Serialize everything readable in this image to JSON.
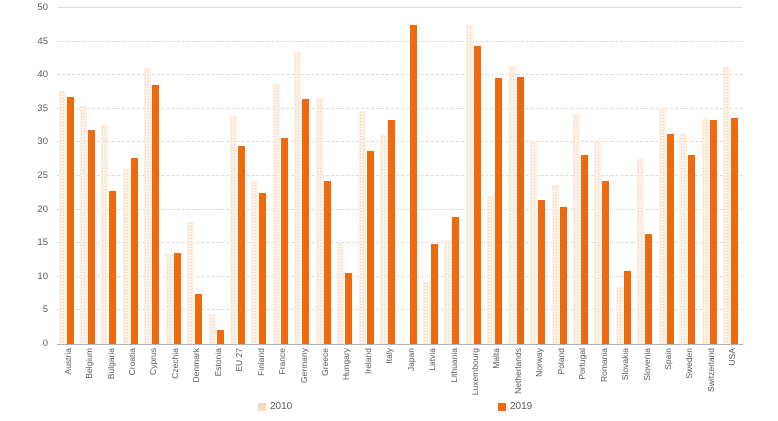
{
  "chart_data": {
    "type": "bar",
    "title": "",
    "xlabel": "",
    "ylabel": "",
    "ylim": [
      0,
      50
    ],
    "yticks": [
      0,
      5,
      10,
      15,
      20,
      25,
      30,
      35,
      40,
      45,
      50
    ],
    "grid": "horizontal-dashed",
    "legend_position": "bottom",
    "categories": [
      "Austria",
      "Belgium",
      "Bulgaria",
      "Croatia",
      "Cyprus",
      "Czechia",
      "Denmark",
      "Estonia",
      "EU 27",
      "Finland",
      "France",
      "Germany",
      "Greece",
      "Hungary",
      "Ireland",
      "Italy",
      "Japan",
      "Latvia",
      "Lithuania",
      "Luxembourg",
      "Malta",
      "Netherlands",
      "Norway",
      "Poland",
      "Portugal",
      "Romania",
      "Slovakia",
      "Slovenia",
      "Spain",
      "Sweden",
      "Switzerland",
      "USA"
    ],
    "series": [
      {
        "name": "2010",
        "color": "#fdf0e5",
        "legend_color": "#f9d9c0",
        "values": [
          37.6,
          35.4,
          32.6,
          26.1,
          41.1,
          13.4,
          18.2,
          4.4,
          34.0,
          24.3,
          38.7,
          43.4,
          36.6,
          15.0,
          34.7,
          31.1,
          null,
          9.3,
          15.5,
          47.5,
          22.0,
          41.4,
          30.0,
          23.7,
          34.2,
          30.0,
          8.5,
          27.5,
          35.2,
          31.2,
          33.5,
          41.3
        ]
      },
      {
        "name": "2019",
        "color": "#f1690d",
        "legend_color": "#f1690d",
        "values": [
          36.7,
          31.9,
          22.8,
          27.7,
          38.6,
          13.5,
          7.5,
          2.1,
          29.5,
          22.5,
          30.7,
          36.5,
          24.2,
          10.5,
          28.7,
          33.4,
          47.5,
          14.9,
          18.9,
          44.4,
          39.6,
          39.8,
          21.5,
          20.4,
          28.2,
          24.2,
          10.9,
          16.4,
          31.3,
          28.1,
          33.3,
          33.7
        ]
      }
    ]
  },
  "colors": {
    "gridline": "#dcdcdc",
    "axis_line": "#b3b3b3",
    "text": "#595959"
  }
}
